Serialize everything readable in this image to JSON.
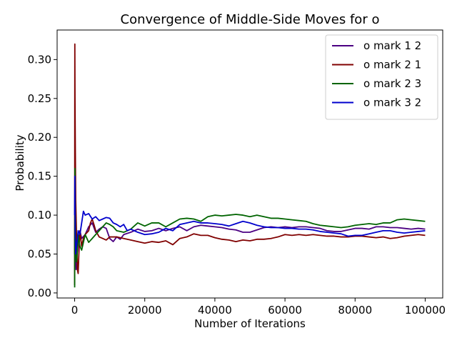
{
  "chart_data": {
    "type": "line",
    "title": "Convergence of Middle-Side Moves for o",
    "xlabel": "Number of Iterations",
    "ylabel": "Probability",
    "xlim": [
      -5000,
      105000
    ],
    "ylim": [
      -0.0065,
      0.338
    ],
    "xticks": [
      0,
      20000,
      40000,
      60000,
      80000,
      100000
    ],
    "yticks": [
      0.0,
      0.05,
      0.1,
      0.15,
      0.2,
      0.25,
      0.3
    ],
    "ytick_labels": [
      "0.00",
      "0.05",
      "0.10",
      "0.15",
      "0.20",
      "0.25",
      "0.30"
    ],
    "grid": false,
    "legend_position": "top-right",
    "series": [
      {
        "name": "o mark 1 2",
        "color": "#4b0082",
        "points": [
          [
            0,
            0.05
          ],
          [
            100,
            0.12
          ],
          [
            200,
            0.07
          ],
          [
            400,
            0.03
          ],
          [
            700,
            0.05
          ],
          [
            1000,
            0.065
          ],
          [
            1500,
            0.08
          ],
          [
            2000,
            0.07
          ],
          [
            3000,
            0.075
          ],
          [
            4000,
            0.085
          ],
          [
            5000,
            0.09
          ],
          [
            6000,
            0.078
          ],
          [
            7000,
            0.082
          ],
          [
            8000,
            0.085
          ],
          [
            9000,
            0.083
          ],
          [
            10000,
            0.07
          ],
          [
            11000,
            0.066
          ],
          [
            12000,
            0.072
          ],
          [
            13000,
            0.069
          ],
          [
            14000,
            0.075
          ],
          [
            16000,
            0.078
          ],
          [
            18000,
            0.082
          ],
          [
            20000,
            0.079
          ],
          [
            22000,
            0.08
          ],
          [
            24000,
            0.083
          ],
          [
            26000,
            0.08
          ],
          [
            28000,
            0.083
          ],
          [
            30000,
            0.085
          ],
          [
            32000,
            0.08
          ],
          [
            34000,
            0.085
          ],
          [
            36000,
            0.087
          ],
          [
            38000,
            0.086
          ],
          [
            40000,
            0.085
          ],
          [
            42000,
            0.084
          ],
          [
            44000,
            0.082
          ],
          [
            46000,
            0.081
          ],
          [
            48000,
            0.078
          ],
          [
            50000,
            0.078
          ],
          [
            52000,
            0.081
          ],
          [
            54000,
            0.084
          ],
          [
            56000,
            0.085
          ],
          [
            58000,
            0.084
          ],
          [
            60000,
            0.085
          ],
          [
            62000,
            0.084
          ],
          [
            64000,
            0.085
          ],
          [
            66000,
            0.085
          ],
          [
            68000,
            0.084
          ],
          [
            70000,
            0.083
          ],
          [
            72000,
            0.08
          ],
          [
            74000,
            0.079
          ],
          [
            76000,
            0.079
          ],
          [
            78000,
            0.081
          ],
          [
            80000,
            0.083
          ],
          [
            82000,
            0.083
          ],
          [
            84000,
            0.082
          ],
          [
            86000,
            0.085
          ],
          [
            88000,
            0.085
          ],
          [
            90000,
            0.084
          ],
          [
            92000,
            0.084
          ],
          [
            94000,
            0.083
          ],
          [
            96000,
            0.082
          ],
          [
            98000,
            0.083
          ],
          [
            100000,
            0.082
          ]
        ]
      },
      {
        "name": "o mark 2 1",
        "color": "#800000",
        "points": [
          [
            0,
            0.01
          ],
          [
            50,
            0.32
          ],
          [
            100,
            0.25
          ],
          [
            200,
            0.18
          ],
          [
            300,
            0.12
          ],
          [
            500,
            0.08
          ],
          [
            800,
            0.03
          ],
          [
            1000,
            0.025
          ],
          [
            1200,
            0.05
          ],
          [
            1500,
            0.08
          ],
          [
            2000,
            0.06
          ],
          [
            2500,
            0.07
          ],
          [
            3000,
            0.075
          ],
          [
            4000,
            0.08
          ],
          [
            4500,
            0.09
          ],
          [
            5000,
            0.095
          ],
          [
            5500,
            0.088
          ],
          [
            6000,
            0.08
          ],
          [
            7000,
            0.072
          ],
          [
            8000,
            0.07
          ],
          [
            9000,
            0.068
          ],
          [
            10000,
            0.072
          ],
          [
            12000,
            0.072
          ],
          [
            14000,
            0.07
          ],
          [
            16000,
            0.068
          ],
          [
            18000,
            0.066
          ],
          [
            20000,
            0.064
          ],
          [
            22000,
            0.066
          ],
          [
            24000,
            0.065
          ],
          [
            26000,
            0.067
          ],
          [
            28000,
            0.062
          ],
          [
            30000,
            0.07
          ],
          [
            32000,
            0.072
          ],
          [
            34000,
            0.076
          ],
          [
            36000,
            0.074
          ],
          [
            38000,
            0.074
          ],
          [
            40000,
            0.071
          ],
          [
            42000,
            0.069
          ],
          [
            44000,
            0.068
          ],
          [
            46000,
            0.066
          ],
          [
            48000,
            0.068
          ],
          [
            50000,
            0.067
          ],
          [
            52000,
            0.069
          ],
          [
            54000,
            0.069
          ],
          [
            56000,
            0.07
          ],
          [
            58000,
            0.072
          ],
          [
            60000,
            0.075
          ],
          [
            62000,
            0.074
          ],
          [
            64000,
            0.075
          ],
          [
            66000,
            0.074
          ],
          [
            68000,
            0.075
          ],
          [
            70000,
            0.074
          ],
          [
            72000,
            0.073
          ],
          [
            74000,
            0.073
          ],
          [
            76000,
            0.072
          ],
          [
            78000,
            0.072
          ],
          [
            80000,
            0.073
          ],
          [
            82000,
            0.073
          ],
          [
            84000,
            0.072
          ],
          [
            86000,
            0.071
          ],
          [
            88000,
            0.072
          ],
          [
            90000,
            0.07
          ],
          [
            92000,
            0.071
          ],
          [
            94000,
            0.073
          ],
          [
            96000,
            0.074
          ],
          [
            98000,
            0.075
          ],
          [
            100000,
            0.074
          ]
        ]
      },
      {
        "name": "o mark 2 3",
        "color": "#006400",
        "points": [
          [
            0,
            0.007
          ],
          [
            80,
            0.16
          ],
          [
            150,
            0.1
          ],
          [
            300,
            0.06
          ],
          [
            500,
            0.04
          ],
          [
            700,
            0.05
          ],
          [
            1000,
            0.075
          ],
          [
            1500,
            0.06
          ],
          [
            2000,
            0.055
          ],
          [
            3000,
            0.075
          ],
          [
            4000,
            0.065
          ],
          [
            5000,
            0.07
          ],
          [
            6000,
            0.075
          ],
          [
            7000,
            0.08
          ],
          [
            8000,
            0.085
          ],
          [
            9000,
            0.09
          ],
          [
            10000,
            0.088
          ],
          [
            11000,
            0.085
          ],
          [
            12000,
            0.08
          ],
          [
            14000,
            0.078
          ],
          [
            16000,
            0.082
          ],
          [
            18000,
            0.09
          ],
          [
            20000,
            0.086
          ],
          [
            22000,
            0.09
          ],
          [
            24000,
            0.09
          ],
          [
            26000,
            0.085
          ],
          [
            28000,
            0.09
          ],
          [
            30000,
            0.095
          ],
          [
            32000,
            0.096
          ],
          [
            34000,
            0.095
          ],
          [
            36000,
            0.092
          ],
          [
            38000,
            0.098
          ],
          [
            40000,
            0.1
          ],
          [
            42000,
            0.099
          ],
          [
            44000,
            0.1
          ],
          [
            46000,
            0.101
          ],
          [
            48000,
            0.1
          ],
          [
            50000,
            0.098
          ],
          [
            52000,
            0.1
          ],
          [
            54000,
            0.098
          ],
          [
            56000,
            0.096
          ],
          [
            58000,
            0.096
          ],
          [
            60000,
            0.095
          ],
          [
            62000,
            0.094
          ],
          [
            64000,
            0.093
          ],
          [
            66000,
            0.092
          ],
          [
            68000,
            0.089
          ],
          [
            70000,
            0.087
          ],
          [
            72000,
            0.086
          ],
          [
            74000,
            0.085
          ],
          [
            76000,
            0.084
          ],
          [
            78000,
            0.085
          ],
          [
            80000,
            0.087
          ],
          [
            82000,
            0.088
          ],
          [
            84000,
            0.089
          ],
          [
            86000,
            0.088
          ],
          [
            88000,
            0.09
          ],
          [
            90000,
            0.09
          ],
          [
            92000,
            0.094
          ],
          [
            94000,
            0.095
          ],
          [
            96000,
            0.094
          ],
          [
            98000,
            0.093
          ],
          [
            100000,
            0.092
          ]
        ]
      },
      {
        "name": "o mark 3 2",
        "color": "#0000cd",
        "points": [
          [
            0,
            0.1
          ],
          [
            60,
            0.15
          ],
          [
            150,
            0.08
          ],
          [
            300,
            0.05
          ],
          [
            500,
            0.06
          ],
          [
            800,
            0.07
          ],
          [
            1000,
            0.08
          ],
          [
            1500,
            0.075
          ],
          [
            2000,
            0.09
          ],
          [
            2500,
            0.105
          ],
          [
            3000,
            0.1
          ],
          [
            4000,
            0.102
          ],
          [
            5000,
            0.095
          ],
          [
            6000,
            0.098
          ],
          [
            7000,
            0.093
          ],
          [
            8000,
            0.095
          ],
          [
            9000,
            0.097
          ],
          [
            10000,
            0.096
          ],
          [
            11000,
            0.09
          ],
          [
            12000,
            0.088
          ],
          [
            13000,
            0.085
          ],
          [
            14000,
            0.088
          ],
          [
            15000,
            0.08
          ],
          [
            16000,
            0.082
          ],
          [
            18000,
            0.078
          ],
          [
            20000,
            0.075
          ],
          [
            22000,
            0.076
          ],
          [
            24000,
            0.078
          ],
          [
            26000,
            0.083
          ],
          [
            28000,
            0.08
          ],
          [
            30000,
            0.088
          ],
          [
            32000,
            0.09
          ],
          [
            34000,
            0.092
          ],
          [
            36000,
            0.09
          ],
          [
            38000,
            0.09
          ],
          [
            40000,
            0.089
          ],
          [
            42000,
            0.088
          ],
          [
            44000,
            0.086
          ],
          [
            46000,
            0.089
          ],
          [
            48000,
            0.092
          ],
          [
            50000,
            0.09
          ],
          [
            52000,
            0.087
          ],
          [
            54000,
            0.085
          ],
          [
            56000,
            0.084
          ],
          [
            58000,
            0.084
          ],
          [
            60000,
            0.083
          ],
          [
            62000,
            0.083
          ],
          [
            64000,
            0.082
          ],
          [
            66000,
            0.082
          ],
          [
            68000,
            0.081
          ],
          [
            70000,
            0.079
          ],
          [
            72000,
            0.078
          ],
          [
            74000,
            0.077
          ],
          [
            76000,
            0.076
          ],
          [
            78000,
            0.073
          ],
          [
            80000,
            0.074
          ],
          [
            82000,
            0.074
          ],
          [
            84000,
            0.076
          ],
          [
            86000,
            0.078
          ],
          [
            88000,
            0.08
          ],
          [
            90000,
            0.08
          ],
          [
            92000,
            0.078
          ],
          [
            94000,
            0.077
          ],
          [
            96000,
            0.078
          ],
          [
            98000,
            0.079
          ],
          [
            100000,
            0.08
          ]
        ]
      }
    ]
  }
}
